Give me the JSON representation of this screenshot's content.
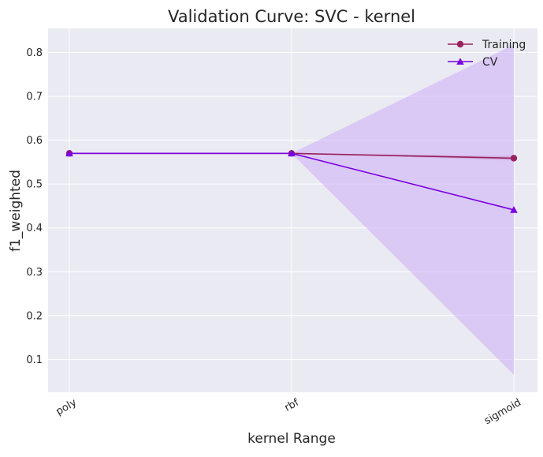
{
  "chart_data": {
    "type": "line",
    "title": "Validation Curve: SVC - kernel",
    "xlabel": "kernel Range",
    "ylabel": "f1_weighted",
    "categories": [
      "poly",
      "rbf",
      "sigmoid"
    ],
    "ylim": [
      0.025,
      0.855
    ],
    "yticks": [
      0.1,
      0.2,
      0.3,
      0.4,
      0.5,
      0.6,
      0.7,
      0.8
    ],
    "grid": true,
    "legend_position": "top-right",
    "series": [
      {
        "name": "Training",
        "marker": "circle",
        "color": "#9b2060",
        "values": [
          0.57,
          0.57,
          0.559
        ],
        "band_lower": [
          0.57,
          0.57,
          0.554
        ],
        "band_upper": [
          0.57,
          0.57,
          0.564
        ]
      },
      {
        "name": "CV",
        "marker": "triangle",
        "color": "#7b00e0",
        "values": [
          0.57,
          0.57,
          0.441
        ],
        "band_lower": [
          0.57,
          0.57,
          0.065
        ],
        "band_upper": [
          0.57,
          0.57,
          0.818
        ]
      }
    ],
    "background": "#eaeaf2",
    "band_color": "#c8a8f5"
  }
}
